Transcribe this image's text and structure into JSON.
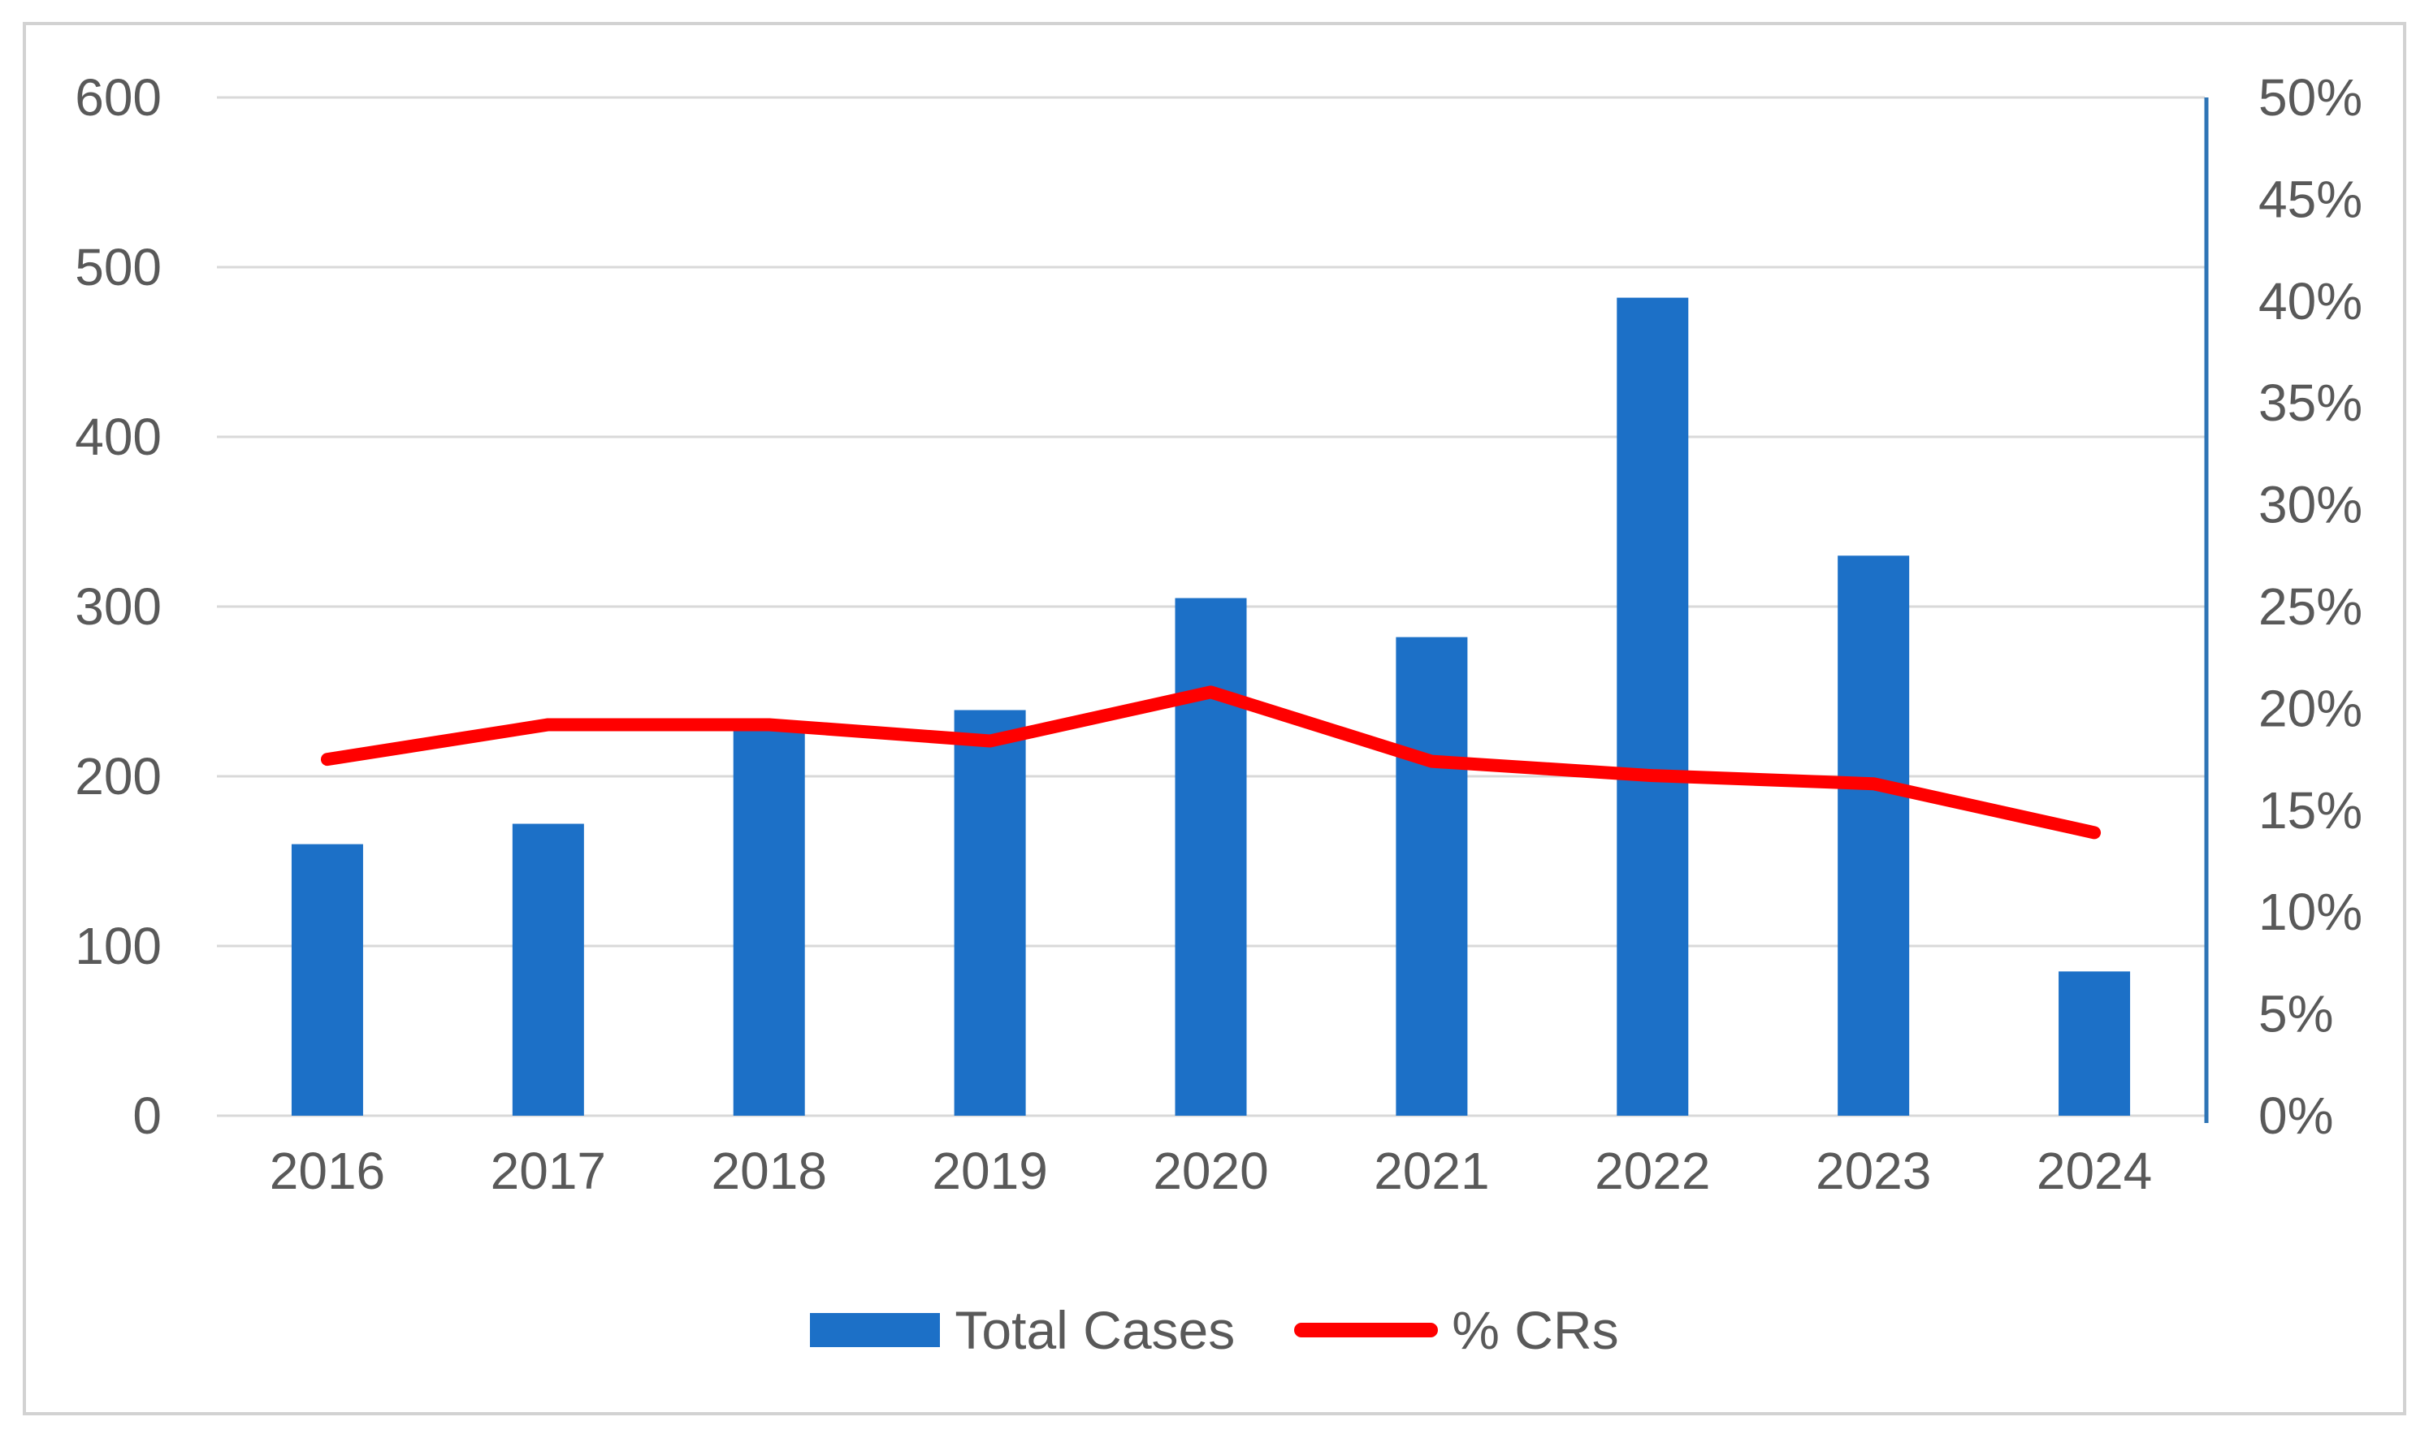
{
  "chart_data": {
    "type": "combo-bar-line",
    "categories": [
      "2016",
      "2017",
      "2018",
      "2019",
      "2020",
      "2021",
      "2022",
      "2023",
      "2024"
    ],
    "series": [
      {
        "name": "Total Cases",
        "type": "bar",
        "axis": "left",
        "color": "#1c70c7",
        "values": [
          160,
          172,
          227,
          239,
          305,
          282,
          482,
          330,
          85
        ]
      },
      {
        "name": "% CRs",
        "type": "line",
        "axis": "right",
        "color": "#ff0000",
        "values": [
          17.5,
          19.2,
          19.2,
          18.4,
          20.8,
          17.4,
          16.7,
          16.3,
          13.9
        ]
      }
    ],
    "title": "",
    "xlabel": "",
    "ylabel": "",
    "left_axis": {
      "min": 0,
      "max": 600,
      "step": 100,
      "tick_labels": [
        "0",
        "100",
        "200",
        "300",
        "400",
        "500",
        "600"
      ]
    },
    "right_axis": {
      "min": 0,
      "max": 50,
      "step": 5,
      "tick_labels": [
        "0%",
        "5%",
        "10%",
        "15%",
        "20%",
        "25%",
        "30%",
        "35%",
        "40%",
        "45%",
        "50%"
      ]
    },
    "grid": true,
    "legend_position": "bottom"
  },
  "legend": {
    "total_cases_label": "Total Cases",
    "crs_label": "% CRs"
  },
  "colors": {
    "bar_blue": "#1c70c7",
    "line_red": "#ff0000",
    "secondary_axis_blue": "#2e74b5",
    "gridline_gray": "#d9d9d9",
    "label_gray": "#595959",
    "frame_border_gray": "#d2d2d2"
  }
}
